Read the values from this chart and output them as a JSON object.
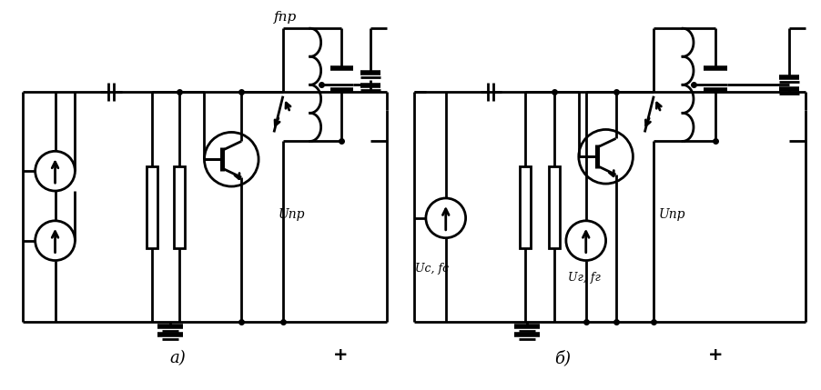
{
  "fig_width": 9.02,
  "fig_height": 4.29,
  "dpi": 100,
  "bg_color": "#ffffff",
  "line_color": "#000000",
  "line_width": 2.0,
  "label_a": "а)",
  "label_b": "б)",
  "text_fpr": "fпр",
  "text_Upr_a": "Uпр",
  "text_Upr_b": "Uпр",
  "text_Uc_fc": "Uс, fс",
  "text_Ur_fr": "Uг, fг",
  "text_plus_a": "+",
  "text_plus_b": "+"
}
